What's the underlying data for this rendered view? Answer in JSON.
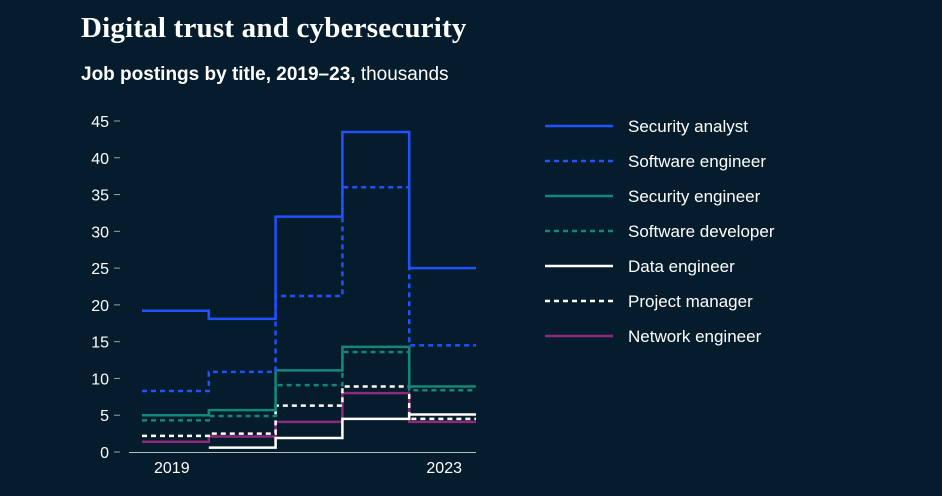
{
  "header": {
    "title": "Digital trust and cybersecurity",
    "subtitle_bold": "Job postings by title, 2019–23,",
    "subtitle_unit": "thousands"
  },
  "chart_data": {
    "type": "line",
    "step": true,
    "x": [
      2019,
      2020,
      2021,
      2022,
      2023
    ],
    "x_tick_labels": [
      "2019",
      "2023"
    ],
    "ylim": [
      0,
      45
    ],
    "y_ticks": [
      0,
      5,
      10,
      15,
      20,
      25,
      30,
      35,
      40,
      45
    ],
    "y_tick_labels": [
      "0",
      "5",
      "10",
      "15",
      "20",
      "25",
      "30",
      "35",
      "40",
      "45"
    ],
    "legend_position": "right",
    "series": [
      {
        "name": "Security analyst",
        "values": [
          19.2,
          18.1,
          32.0,
          43.5,
          25.0
        ],
        "color": "#2251ff",
        "dash": "solid"
      },
      {
        "name": "Software engineer",
        "values": [
          8.3,
          10.9,
          21.2,
          36.0,
          14.5
        ],
        "color": "#2251ff",
        "dash": "dotted"
      },
      {
        "name": "Security engineer",
        "values": [
          5.0,
          5.7,
          11.1,
          14.3,
          8.9
        ],
        "color": "#14877a",
        "dash": "solid"
      },
      {
        "name": "Software developer",
        "values": [
          4.3,
          4.9,
          9.1,
          13.6,
          8.4
        ],
        "color": "#14877a",
        "dash": "dotted"
      },
      {
        "name": "Data engineer",
        "values": [
          null,
          0.6,
          1.9,
          4.5,
          5.1
        ],
        "color": "#ffffff",
        "dash": "solid"
      },
      {
        "name": "Project manager",
        "values": [
          2.2,
          2.5,
          6.3,
          8.9,
          4.5
        ],
        "color": "#ffffff",
        "dash": "dotted"
      },
      {
        "name": "Network engineer",
        "values": [
          1.4,
          2.1,
          4.1,
          8.0,
          4.1
        ],
        "color": "#8e2a7c",
        "dash": "solid"
      }
    ]
  }
}
